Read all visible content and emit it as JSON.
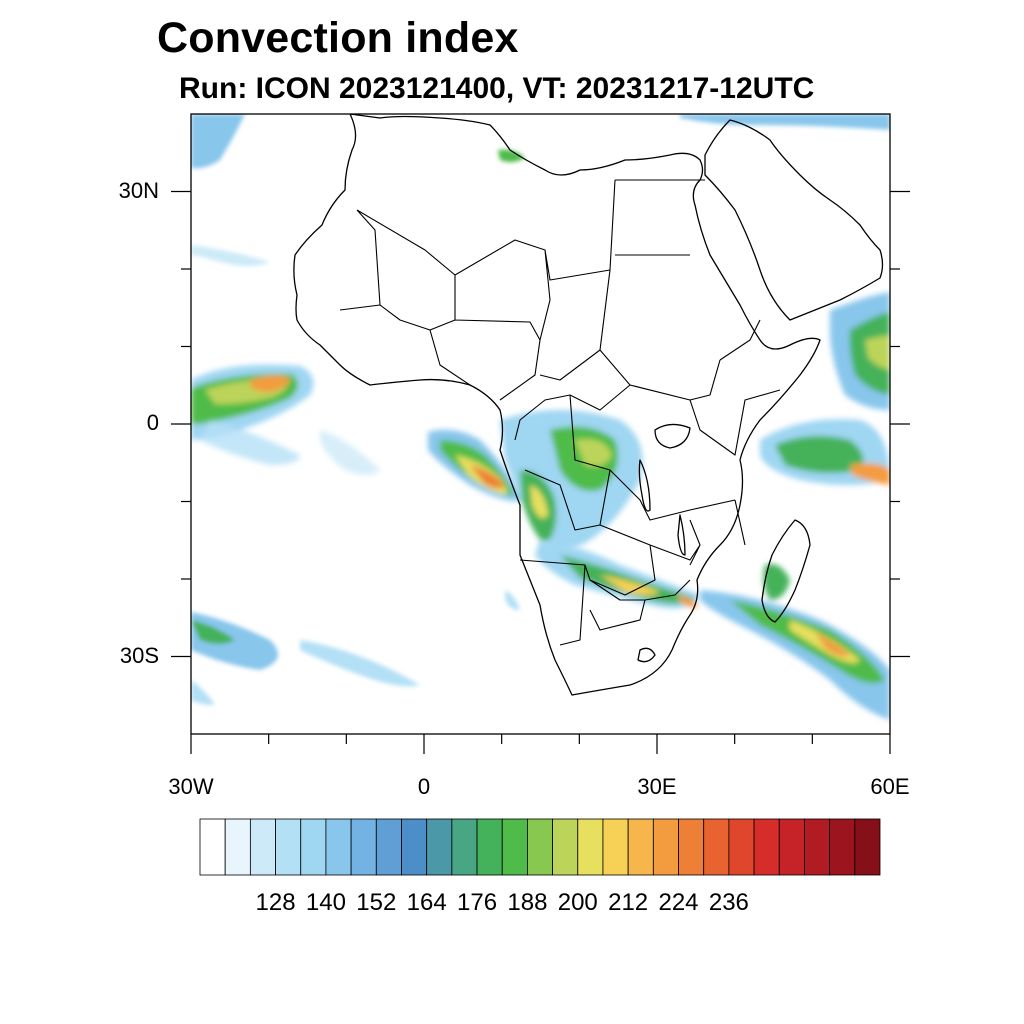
{
  "title": "Convection index",
  "subtitle": "Run: ICON 2023121400,  VT: 20231217-12UTC",
  "axes": {
    "lat_ticks": [
      {
        "value": 30,
        "label": "30N"
      },
      {
        "value": 0,
        "label": "0"
      },
      {
        "value": -30,
        "label": "30S"
      }
    ],
    "lon_ticks": [
      {
        "value": -30,
        "label": "30W"
      },
      {
        "value": 0,
        "label": "0"
      },
      {
        "value": 30,
        "label": "30E"
      },
      {
        "value": 60,
        "label": "60E"
      }
    ],
    "lon_range": [
      -30,
      60
    ],
    "lat_range": [
      -40,
      40
    ]
  },
  "colorbar": {
    "labels": [
      "128",
      "140",
      "152",
      "164",
      "176",
      "188",
      "200",
      "212",
      "224",
      "236"
    ],
    "colors": [
      "#ffffff",
      "#e8f5fd",
      "#cdeaf8",
      "#b4e0f6",
      "#9fd6f2",
      "#88c6ec",
      "#73b3e3",
      "#5f9fd6",
      "#4c8fc8",
      "#4a98a8",
      "#48a684",
      "#44b25a",
      "#4fbb48",
      "#88c850",
      "#bcd45a",
      "#e6e05e",
      "#f6d155",
      "#f7b64b",
      "#f39c3f",
      "#ee7f36",
      "#e8632f",
      "#e0462c",
      "#d72d2a",
      "#c52327",
      "#b11b22",
      "#9c151e",
      "#851019"
    ]
  },
  "colors": {
    "coastline": "#000000",
    "background": "#ffffff"
  }
}
